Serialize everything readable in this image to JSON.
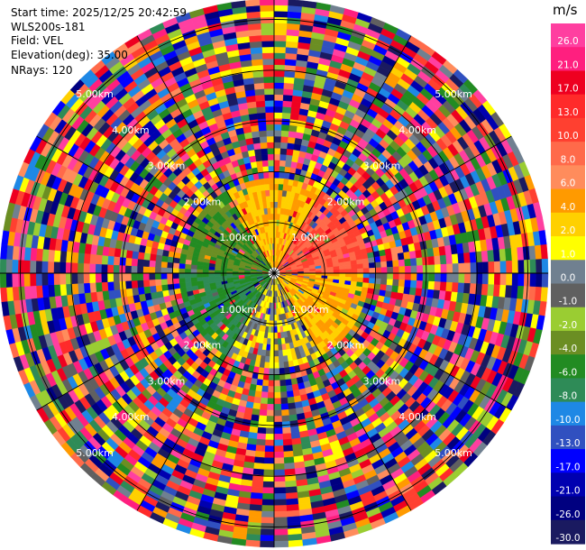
{
  "header": {
    "start_time": "Start time: 2025/12/25 20:42:59",
    "instrument": "WLS200s-181",
    "field": "Field: VEL",
    "elevation": "Elevation(deg): 35.00",
    "nrays": "NRays: 120"
  },
  "chart_data": {
    "type": "heatmap",
    "projection": "polar-ppi",
    "field": "VEL",
    "units": "m/s",
    "n_rays": 120,
    "range_rings_km": [
      1.0,
      2.0,
      3.0,
      4.0,
      5.0
    ],
    "range_ring_labels": [
      "1.00km",
      "2.00km",
      "3.00km",
      "4.00km",
      "5.00km"
    ],
    "max_range_km": 5.4,
    "colorbar": {
      "unit": "m/s",
      "tick_labels": [
        "26.0",
        "21.0",
        "17.0",
        "13.0",
        "10.0",
        "8.0",
        "6.0",
        "4.0",
        "2.0",
        "1.0",
        "0.0",
        "-1.0",
        "-2.0",
        "-4.0",
        "-6.0",
        "-8.0",
        "-10.0",
        "-13.0",
        "-17.0",
        "-21.0",
        "-26.0",
        "-30.0"
      ],
      "colors": [
        "#ff3fa0",
        "#ff1f7f",
        "#ee0020",
        "#ff2a2a",
        "#ff4030",
        "#ff6a4a",
        "#ff8c5c",
        "#ff9a00",
        "#ffd000",
        "#ffff00",
        "#708090",
        "#606060",
        "#9acd32",
        "#6b8e23",
        "#228b22",
        "#2e8b57",
        "#1e88e5",
        "#3050c0",
        "#0000ff",
        "#0000b0",
        "#000080",
        "#1a1a60"
      ]
    },
    "pattern": {
      "inner_range_km": 1.9,
      "inner_sectors": [
        {
          "azimuth_deg": 0,
          "dominant_value": 4.0
        },
        {
          "azimuth_deg": 60,
          "dominant_value": 10.0
        },
        {
          "azimuth_deg": 120,
          "dominant_value": 4.0
        },
        {
          "azimuth_deg": 180,
          "dominant_value": 1.0
        },
        {
          "azimuth_deg": 240,
          "dominant_value": -6.0
        },
        {
          "azimuth_deg": 300,
          "dominant_value": -4.0
        }
      ],
      "outer": "noise"
    }
  }
}
